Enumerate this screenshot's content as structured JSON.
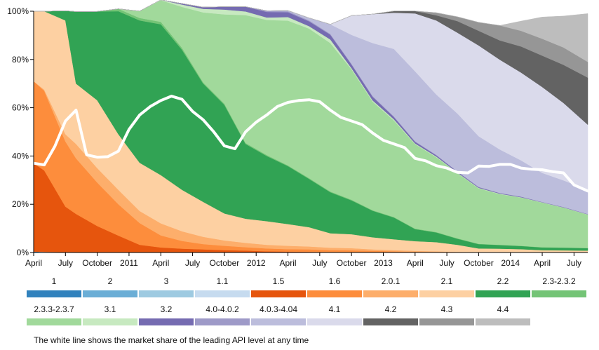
{
  "chart_data": {
    "type": "area",
    "stacked": true,
    "normalized": true,
    "ylabel": "",
    "xlabel": "",
    "ylim": [
      0,
      100
    ],
    "y_ticks": [
      "0%",
      "20%",
      "40%",
      "60%",
      "80%",
      "100%"
    ],
    "y_tick_values": [
      0,
      20,
      40,
      60,
      80,
      100
    ],
    "x_ticks": [
      "April",
      "July",
      "October",
      "2011",
      "April",
      "July",
      "October",
      "2012",
      "April",
      "July",
      "October",
      "2013",
      "April",
      "July",
      "October",
      "2014",
      "April",
      "July"
    ],
    "x_tick_months": [
      0,
      3,
      6,
      9,
      12,
      15,
      18,
      21,
      24,
      27,
      30,
      33,
      36,
      39,
      42,
      45,
      48,
      51
    ],
    "x_range_months": [
      0,
      52.3
    ],
    "x_start": "2010-04",
    "x_unit": "months since April 2010",
    "x": [
      0,
      1,
      3,
      4,
      6,
      8,
      10,
      12,
      14,
      16,
      18,
      20,
      22,
      24,
      26,
      28,
      30,
      32,
      34,
      36,
      38,
      40,
      42,
      44,
      46,
      48,
      50,
      52.3
    ],
    "series": [
      {
        "name": "1",
        "color": "#3182bd",
        "values": [
          0.4,
          0.3,
          0.2,
          0.15,
          0.1,
          0.05,
          0,
          0,
          0,
          0,
          0,
          0,
          0,
          0,
          0,
          0,
          0,
          0,
          0,
          0,
          0,
          0,
          0,
          0,
          0,
          0,
          0,
          0
        ]
      },
      {
        "name": "2",
        "color": "#6baed6",
        "values": [
          0,
          0,
          0,
          0,
          0,
          0,
          0,
          0,
          0,
          0,
          0,
          0,
          0,
          0,
          0,
          0,
          0,
          0,
          0,
          0,
          0,
          0,
          0,
          0,
          0,
          0,
          0,
          0
        ]
      },
      {
        "name": "3",
        "color": "#9ecae1",
        "values": [
          0,
          0,
          0,
          0,
          0,
          0,
          0,
          0,
          0,
          0,
          0,
          0,
          0,
          0,
          0,
          0,
          0,
          0,
          0,
          0,
          0,
          0,
          0,
          0,
          0,
          0,
          0,
          0
        ]
      },
      {
        "name": "1.1",
        "color": "#c6dbef",
        "values": [
          0,
          0,
          0,
          0,
          0,
          0,
          0,
          0,
          0,
          0,
          0,
          0,
          0,
          0,
          0,
          0,
          0,
          0,
          0,
          0,
          0,
          0,
          0,
          0,
          0,
          0,
          0,
          0
        ]
      },
      {
        "name": "1.5",
        "color": "#e6550d",
        "values": [
          36.6,
          33.7,
          18.8,
          15.85,
          10.9,
          6.95,
          3.2,
          2.1,
          1.6,
          1.3,
          1.0,
          0.8,
          0.5,
          0.4,
          0.3,
          0.2,
          0.1,
          0,
          0,
          0,
          0,
          0,
          0,
          0,
          0,
          0,
          0,
          0
        ]
      },
      {
        "name": "1.6",
        "color": "#fd8d3c",
        "values": [
          34.0,
          33.0,
          27.0,
          23.0,
          18.0,
          13.0,
          9.0,
          5.0,
          3.2,
          2.2,
          1.8,
          1.4,
          1.2,
          1.0,
          1.0,
          0.8,
          0.8,
          0.7,
          0.5,
          0.3,
          0.2,
          0.1,
          0.1,
          0.1,
          0,
          0,
          0,
          0
        ]
      },
      {
        "name": "2.0.1",
        "color": "#fdae6b",
        "values": [
          0,
          0.5,
          3.0,
          6.0,
          6.0,
          6.0,
          5.0,
          5.0,
          4.0,
          3.0,
          2.2,
          1.8,
          1.5,
          1.4,
          1.2,
          1.0,
          0.9,
          0.6,
          0.5,
          0.4,
          0.3,
          0.2,
          0.1,
          0.1,
          0.1,
          0,
          0,
          0
        ]
      },
      {
        "name": "2.1",
        "color": "#fdd0a2",
        "values": [
          29.0,
          32.5,
          47.2,
          25.0,
          28.1,
          23.0,
          20.0,
          20.0,
          17.2,
          14.5,
          11.2,
          10.0,
          9.8,
          9.0,
          8.0,
          6.0,
          5.8,
          5.0,
          4.5,
          4.0,
          3.8,
          2.9,
          1.5,
          1.4,
          1.3,
          1.0,
          0.9,
          0.8
        ]
      },
      {
        "name": "2.2",
        "color": "#31a354",
        "values": [
          0,
          0,
          4.0,
          29.85,
          36.8,
          51.0,
          59.0,
          62.5,
          58.0,
          49.0,
          45.0,
          31.0,
          27.0,
          24.0,
          20.0,
          17.0,
          14.0,
          11.0,
          9.0,
          5.0,
          4.0,
          2.5,
          1.8,
          1.5,
          1.3,
          1.1,
          1.1,
          1.0
        ]
      },
      {
        "name": "2.3-2.3.2",
        "color": "#74c476",
        "values": [
          0,
          0,
          0,
          0,
          0,
          1.0,
          1.0,
          1.0,
          0.8,
          0.5,
          0.5,
          0.4,
          0.4,
          0.3,
          0.3,
          0.3,
          0.3,
          0.2,
          0.2,
          0.2,
          0.2,
          0.2,
          0.1,
          0.1,
          0.1,
          0.1,
          0.1,
          0.1
        ]
      },
      {
        "name": "2.3.3-2.3.7",
        "color": "#a1d99b",
        "values": [
          0,
          0,
          0,
          0,
          0,
          0,
          2.85,
          8.95,
          17.0,
          29.0,
          37.0,
          53.0,
          56.0,
          60.0,
          62.0,
          61.5,
          54.0,
          45.0,
          40.0,
          35.0,
          31.0,
          27.0,
          23.0,
          21.0,
          20.0,
          18.5,
          16.5,
          13.8
        ]
      },
      {
        "name": "3.1",
        "color": "#c7e9c0",
        "values": [
          0,
          0,
          0,
          0,
          0,
          0,
          0,
          0.2,
          1.0,
          1.5,
          2.0,
          1.5,
          1.0,
          1.5,
          1.0,
          1.5,
          0.5,
          0.5,
          0.5,
          0.3,
          0.3,
          0.2,
          0.2,
          0.2,
          0.1,
          0.1,
          0.1,
          0.1
        ]
      },
      {
        "name": "3.2",
        "color": "#756bb1",
        "values": [
          0,
          0,
          0,
          0,
          0,
          0,
          0,
          0,
          0.4,
          0.7,
          1.2,
          2.0,
          2.3,
          2.0,
          2.0,
          2.0,
          1.5,
          1.5,
          1.0,
          0.7,
          0.5,
          0.4,
          0.3,
          0.2,
          0.2,
          0.1,
          0.1,
          0.1
        ]
      },
      {
        "name": "4.0-4.0.2",
        "color": "#9e9ac8",
        "values": [
          0,
          0,
          0,
          0,
          0,
          0,
          0,
          0,
          0,
          0,
          0,
          0,
          0.5,
          0.4,
          0.4,
          0.3,
          0.3,
          0.3,
          0.2,
          0.2,
          0.2,
          0.1,
          0.1,
          0.1,
          0.1,
          0.1,
          0.1,
          0.1
        ]
      },
      {
        "name": "4.0.3-4.04",
        "color": "#bcbddc",
        "values": [
          0,
          0,
          0,
          0,
          0,
          0,
          0,
          0,
          0,
          0,
          0,
          0,
          0,
          0.3,
          1.0,
          4.0,
          12.0,
          22.0,
          28.0,
          29.0,
          25.0,
          24.0,
          21.0,
          18.0,
          15.0,
          12.0,
          11.0,
          10.0
        ]
      },
      {
        "name": "4.1",
        "color": "#dadaeb",
        "values": [
          0,
          0,
          0,
          0,
          0,
          0,
          0,
          0,
          0,
          0,
          0,
          0,
          0,
          0,
          0,
          0,
          8.0,
          12.0,
          15.0,
          24.0,
          30.7,
          33.5,
          37.6,
          37.2,
          36.4,
          35.6,
          32.1,
          27.0
        ]
      },
      {
        "name": "4.2",
        "color": "#636363",
        "values": [
          0,
          0,
          0,
          0,
          0,
          0,
          0,
          0,
          0,
          0,
          0,
          0,
          0,
          0,
          0,
          0,
          0,
          0,
          0.7,
          1.0,
          2.1,
          4.8,
          6.1,
          8.0,
          10.8,
          13.0,
          15.8,
          19.5
        ]
      },
      {
        "name": "4.3",
        "color": "#969696",
        "values": [
          0,
          0,
          0,
          0,
          0,
          0,
          0,
          0,
          0,
          0,
          0,
          0,
          0,
          0,
          0,
          0,
          0,
          0,
          0,
          0,
          1.1,
          1.8,
          3.5,
          6.2,
          6.5,
          7.0,
          7.2,
          6.5
        ]
      },
      {
        "name": "4.4",
        "color": "#bdbdbd",
        "values": [
          0,
          0,
          0,
          0,
          0,
          0,
          0,
          0,
          0,
          0,
          0,
          0,
          0,
          0,
          0,
          0,
          0,
          0,
          0,
          0,
          0,
          0,
          0,
          0,
          4.0,
          9.0,
          13.0,
          20.0
        ]
      }
    ],
    "leading_line": {
      "description": "market share of the leading API level",
      "color": "#ffffff",
      "x": [
        0,
        1,
        2,
        3,
        4,
        5,
        6,
        7,
        8,
        9,
        10,
        11,
        12,
        13,
        14,
        15,
        16,
        17,
        18,
        19,
        20,
        21,
        22,
        23,
        24,
        25,
        26,
        27,
        28,
        29,
        30,
        31,
        32,
        33,
        34,
        35,
        36,
        37,
        38,
        39,
        40,
        41,
        42,
        43,
        44,
        45,
        46,
        47,
        48,
        49,
        50,
        51,
        52.3
      ],
      "values": [
        37,
        36.3,
        44,
        54.5,
        59,
        40.5,
        39.5,
        39.7,
        42,
        51,
        57,
        60.5,
        63,
        64.8,
        63.5,
        58.5,
        55,
        50,
        44.2,
        43,
        50,
        54,
        57,
        60.5,
        62.2,
        63,
        63.3,
        62.5,
        59,
        56,
        54.5,
        53,
        49.5,
        46.5,
        45,
        43.5,
        39,
        38,
        36,
        35,
        33.2,
        33,
        35.8,
        35.7,
        36.5,
        36.5,
        35,
        34.5,
        34.3,
        33.5,
        33,
        28,
        25.5
      ]
    }
  },
  "legend": {
    "row1": [
      {
        "label": "1",
        "color": "#3182bd"
      },
      {
        "label": "2",
        "color": "#6baed6"
      },
      {
        "label": "3",
        "color": "#9ecae1"
      },
      {
        "label": "1.1",
        "color": "#c6dbef"
      },
      {
        "label": "1.5",
        "color": "#e6550d"
      },
      {
        "label": "1.6",
        "color": "#fd8d3c"
      },
      {
        "label": "2.0.1",
        "color": "#fdae6b"
      },
      {
        "label": "2.1",
        "color": "#fdd0a2"
      },
      {
        "label": "2.2",
        "color": "#31a354"
      },
      {
        "label": "2.3-2.3.2",
        "color": "#74c476"
      }
    ],
    "row2": [
      {
        "label": "2.3.3-2.3.7",
        "color": "#a1d99b"
      },
      {
        "label": "3.1",
        "color": "#c7e9c0"
      },
      {
        "label": "3.2",
        "color": "#756bb1"
      },
      {
        "label": "4.0-4.0.2",
        "color": "#9e9ac8"
      },
      {
        "label": "4.0.3-4.04",
        "color": "#bcbddc"
      },
      {
        "label": "4.1",
        "color": "#dadaeb"
      },
      {
        "label": "4.2",
        "color": "#636363"
      },
      {
        "label": "4.3",
        "color": "#969696"
      },
      {
        "label": "4.4",
        "color": "#bdbdbd"
      }
    ]
  },
  "footnote": "The white line shows the market share of the leading API level at any time"
}
